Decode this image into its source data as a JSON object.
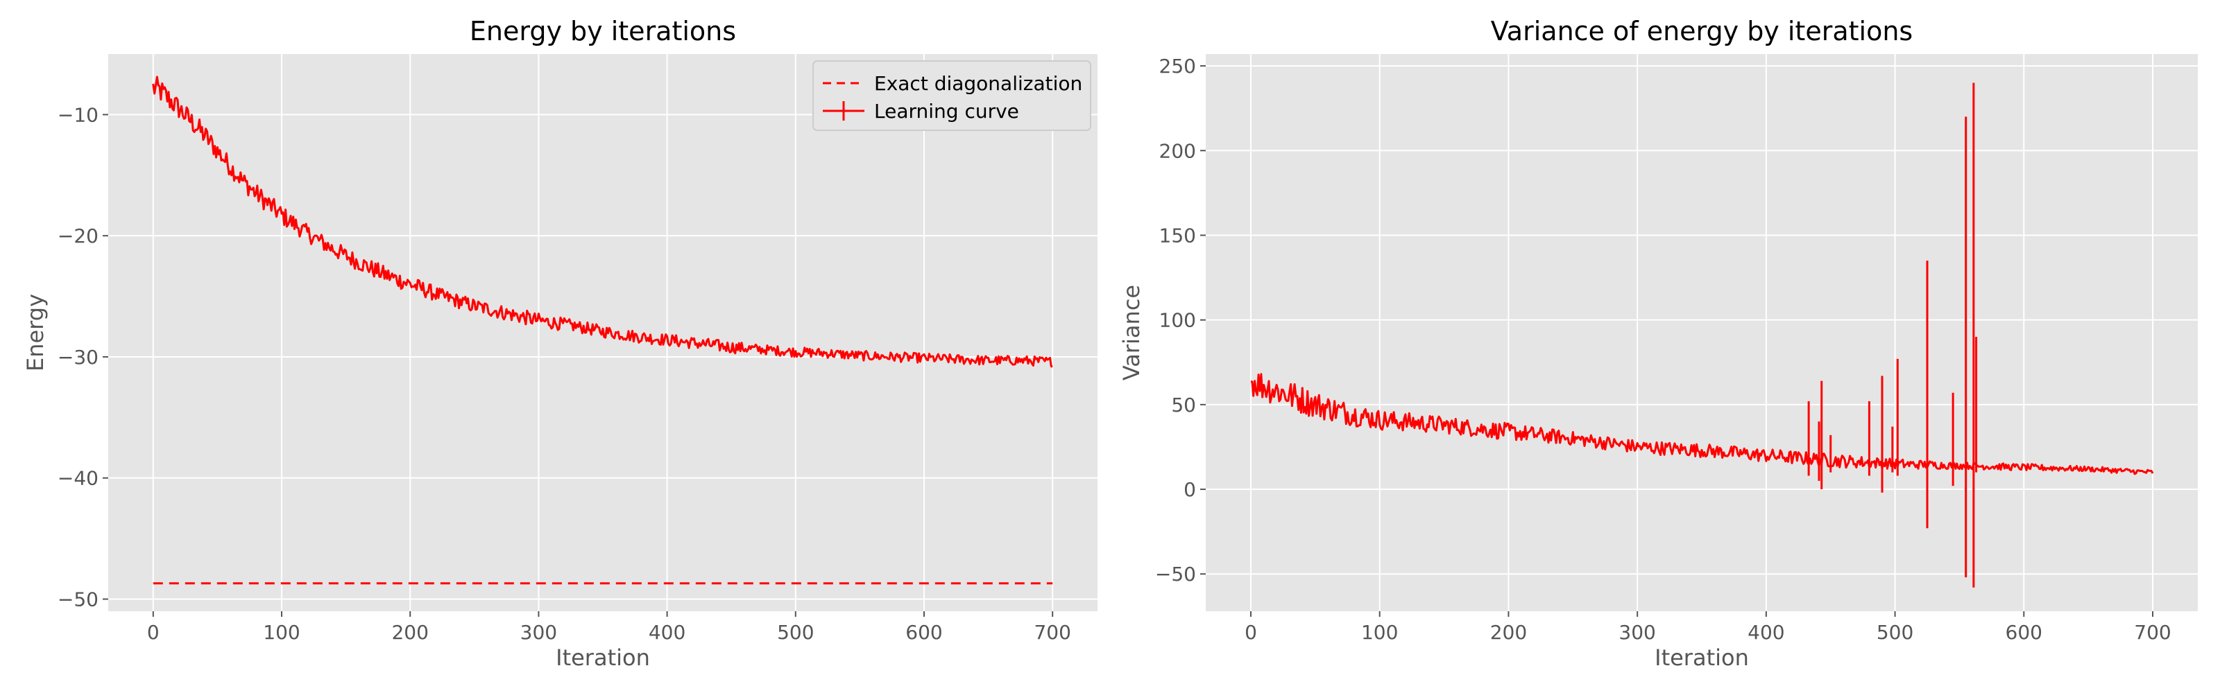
{
  "chart_data": [
    {
      "type": "line",
      "title": "Energy by iterations",
      "xlabel": "Iteration",
      "ylabel": "Energy",
      "xlim": [
        -35,
        735
      ],
      "ylim": [
        -51,
        -5
      ],
      "xticks": [
        0,
        100,
        200,
        300,
        400,
        500,
        600,
        700
      ],
      "yticks": [
        -50,
        -40,
        -30,
        -20,
        -10
      ],
      "xtick_labels": [
        "0",
        "100",
        "200",
        "300",
        "400",
        "500",
        "600",
        "700"
      ],
      "ytick_labels": [
        "−50",
        "−40",
        "−30",
        "−20",
        "−10"
      ],
      "grid": true,
      "legend": "top-right",
      "series": [
        {
          "name": "Exact diagonalization",
          "style": "dashed",
          "color": "#ff0000",
          "x": [
            0,
            700
          ],
          "y": [
            -48.7,
            -48.7
          ]
        },
        {
          "name": "Learning curve",
          "style": "solid",
          "color": "#ff0000",
          "x": [
            0,
            5,
            10,
            20,
            30,
            40,
            50,
            60,
            70,
            80,
            90,
            100,
            120,
            140,
            160,
            180,
            200,
            225,
            250,
            275,
            300,
            325,
            350,
            375,
            400,
            425,
            450,
            475,
            500,
            525,
            550,
            575,
            600,
            625,
            650,
            675,
            700
          ],
          "y": [
            -7.8,
            -8.0,
            -8.5,
            -9.5,
            -10.6,
            -11.7,
            -13.0,
            -14.3,
            -15.5,
            -16.5,
            -17.4,
            -18.3,
            -19.8,
            -21.1,
            -22.2,
            -23.2,
            -24.0,
            -25.0,
            -25.8,
            -26.4,
            -27.0,
            -27.4,
            -27.9,
            -28.3,
            -28.6,
            -28.9,
            -29.2,
            -29.4,
            -29.6,
            -29.7,
            -29.9,
            -30.0,
            -30.1,
            -30.2,
            -30.3,
            -30.3,
            -30.4
          ],
          "noise": [
            1.1,
            1.0,
            1.0,
            0.9,
            0.9,
            0.9,
            0.8,
            0.8,
            0.8,
            0.8,
            0.8,
            0.8,
            0.7,
            0.7,
            0.7,
            0.7,
            0.7,
            0.6,
            0.6,
            0.6,
            0.6,
            0.5,
            0.5,
            0.5,
            0.5,
            0.5,
            0.5,
            0.4,
            0.4,
            0.4,
            0.4,
            0.4,
            0.4,
            0.4,
            0.4,
            0.4,
            0.4
          ]
        }
      ]
    },
    {
      "type": "line",
      "title": "Variance of energy by iterations",
      "xlabel": "Iteration",
      "ylabel": "Variance",
      "xlim": [
        -35,
        735
      ],
      "ylim": [
        -72,
        257
      ],
      "xticks": [
        0,
        100,
        200,
        300,
        400,
        500,
        600,
        700
      ],
      "yticks": [
        -50,
        0,
        50,
        100,
        150,
        200,
        250
      ],
      "xtick_labels": [
        "0",
        "100",
        "200",
        "300",
        "400",
        "500",
        "600",
        "700"
      ],
      "ytick_labels": [
        "−50",
        "0",
        "50",
        "100",
        "150",
        "200",
        "250"
      ],
      "grid": true,
      "series": [
        {
          "style": "solid",
          "color": "#ff0000",
          "x": [
            0,
            25,
            50,
            75,
            100,
            150,
            200,
            250,
            300,
            350,
            400,
            450,
            500,
            550,
            600,
            650,
            700
          ],
          "y": [
            64,
            57,
            50,
            45,
            41,
            38,
            34,
            30,
            25,
            23,
            20,
            17,
            15,
            14,
            13,
            12,
            10
          ],
          "noise": [
            9,
            9,
            8,
            7,
            6,
            5,
            5,
            4,
            4,
            4,
            4,
            4,
            3,
            2,
            2,
            1.5,
            1.5
          ],
          "spikes": [
            {
              "x": 433,
              "hi": 52,
              "lo": 8
            },
            {
              "x": 441,
              "hi": 40,
              "lo": 5
            },
            {
              "x": 443,
              "hi": 64,
              "lo": 0
            },
            {
              "x": 450,
              "hi": 32,
              "lo": 10
            },
            {
              "x": 480,
              "hi": 52,
              "lo": 8
            },
            {
              "x": 490,
              "hi": 67,
              "lo": -2
            },
            {
              "x": 498,
              "hi": 37,
              "lo": 10
            },
            {
              "x": 502,
              "hi": 77,
              "lo": 8
            },
            {
              "x": 525,
              "hi": 135,
              "lo": -23
            },
            {
              "x": 545,
              "hi": 57,
              "lo": 2
            },
            {
              "x": 555,
              "hi": 220,
              "lo": -52
            },
            {
              "x": 561,
              "hi": 240,
              "lo": -58
            },
            {
              "x": 563,
              "hi": 90,
              "lo": 10
            }
          ]
        }
      ]
    }
  ],
  "legend": {
    "exact_label": "Exact diagonalization",
    "learning_label": "Learning curve"
  }
}
